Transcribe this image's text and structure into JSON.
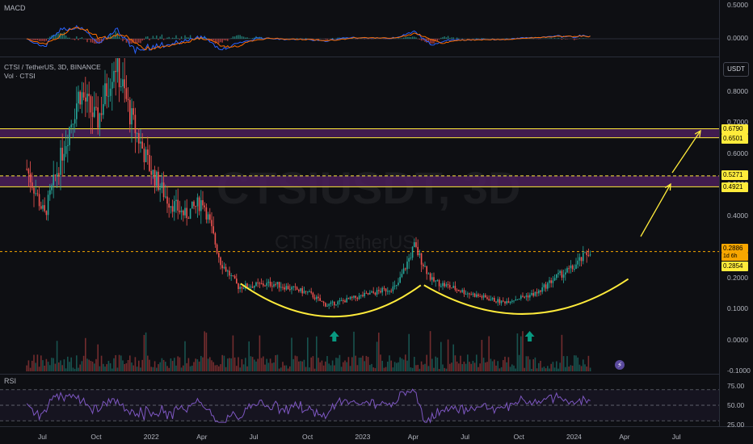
{
  "window": {
    "symbol_line": "CTSI / TetherUS, 3D, BINANCE",
    "vol_line": "Vol · CTSI",
    "watermark_ticker": "CTSIUSDT, 3D",
    "watermark_name": "CTSI / TetherUS",
    "currency_button": "USDT"
  },
  "panes": {
    "macd": {
      "label": "MACD",
      "ticks": [
        "0.5000",
        "0.0000"
      ]
    },
    "rsi": {
      "label": "RSI",
      "ticks": [
        "75.00",
        "50.00",
        "25.00"
      ]
    }
  },
  "price_tags": {
    "r_high_top": "0.6790",
    "r_high_bot": "0.6501",
    "r_mid_top": "0.5271",
    "r_mid_bot": "0.4921",
    "current": "0.2886",
    "countdown": "1d 6h",
    "support": "0.2854"
  },
  "colors": {
    "up": "#26a69a",
    "down": "#ef5350",
    "annotation": "#ffeb3b",
    "zone": "#4a1f5a",
    "macd_line": "#2962ff",
    "signal_line": "#ff6d00",
    "rsi_line": "#7e57c2"
  },
  "icons": {
    "replay": "lightning-icon"
  },
  "chart_data": [
    {
      "type": "candlestick",
      "title": "CTSI / TetherUS, 3D, BINANCE",
      "y_ticks": [
        "0.8000",
        "0.7000",
        "0.6000",
        "0.5000",
        "0.4000",
        "0.3000",
        "0.2000",
        "0.1000",
        "0.0000",
        "-0.1000"
      ],
      "ylim": [
        -0.1,
        0.88
      ],
      "x_ticks": [
        "Jul",
        "Oct",
        "2022",
        "Apr",
        "Jul",
        "Oct",
        "2023",
        "Apr",
        "Jul",
        "Oct",
        "2024",
        "Apr",
        "Jul"
      ],
      "xlim": [
        "2021-06",
        "2024-08"
      ],
      "series": [
        {
          "name": "CTSI",
          "close_path": [
            [
              "2021-06",
              0.55
            ],
            [
              "2021-07",
              0.4
            ],
            [
              "2021-08",
              0.6
            ],
            [
              "2021-09",
              0.8
            ],
            [
              "2021-10",
              0.7
            ],
            [
              "2021-11",
              0.9
            ],
            [
              "2021-12",
              0.7
            ],
            [
              "2022-01",
              0.55
            ],
            [
              "2022-02",
              0.45
            ],
            [
              "2022-03",
              0.4
            ],
            [
              "2022-04",
              0.45
            ],
            [
              "2022-05",
              0.25
            ],
            [
              "2022-06",
              0.17
            ],
            [
              "2022-08",
              0.18
            ],
            [
              "2022-10",
              0.15
            ],
            [
              "2022-11",
              0.11
            ],
            [
              "2023-01",
              0.14
            ],
            [
              "2023-03",
              0.17
            ],
            [
              "2023-04",
              0.3
            ],
            [
              "2023-05",
              0.19
            ],
            [
              "2023-07",
              0.15
            ],
            [
              "2023-09",
              0.12
            ],
            [
              "2023-11",
              0.15
            ],
            [
              "2023-12",
              0.2
            ],
            [
              "2024-01",
              0.23
            ],
            [
              "2024-02",
              0.2886
            ]
          ]
        }
      ],
      "horizontal_levels": [
        "0.6790",
        "0.6501",
        "0.5271",
        "0.4921",
        "0.2854"
      ],
      "annotations": [
        "cup-arc-1",
        "cup-arc-2",
        "projection-arrow-1",
        "projection-arrow-2",
        "up-marker-1",
        "up-marker-2"
      ],
      "grid": false
    },
    {
      "type": "bar",
      "name": "Vol · CTSI"
    },
    {
      "type": "line",
      "name": "MACD",
      "ylim": [
        -0.1,
        0.6
      ],
      "y_ticks": [
        "0.5000",
        "0.0000"
      ]
    },
    {
      "type": "line",
      "name": "RSI",
      "ylim": [
        15,
        90
      ],
      "y_ticks": [
        "75.00",
        "50.00",
        "25.00"
      ]
    }
  ]
}
